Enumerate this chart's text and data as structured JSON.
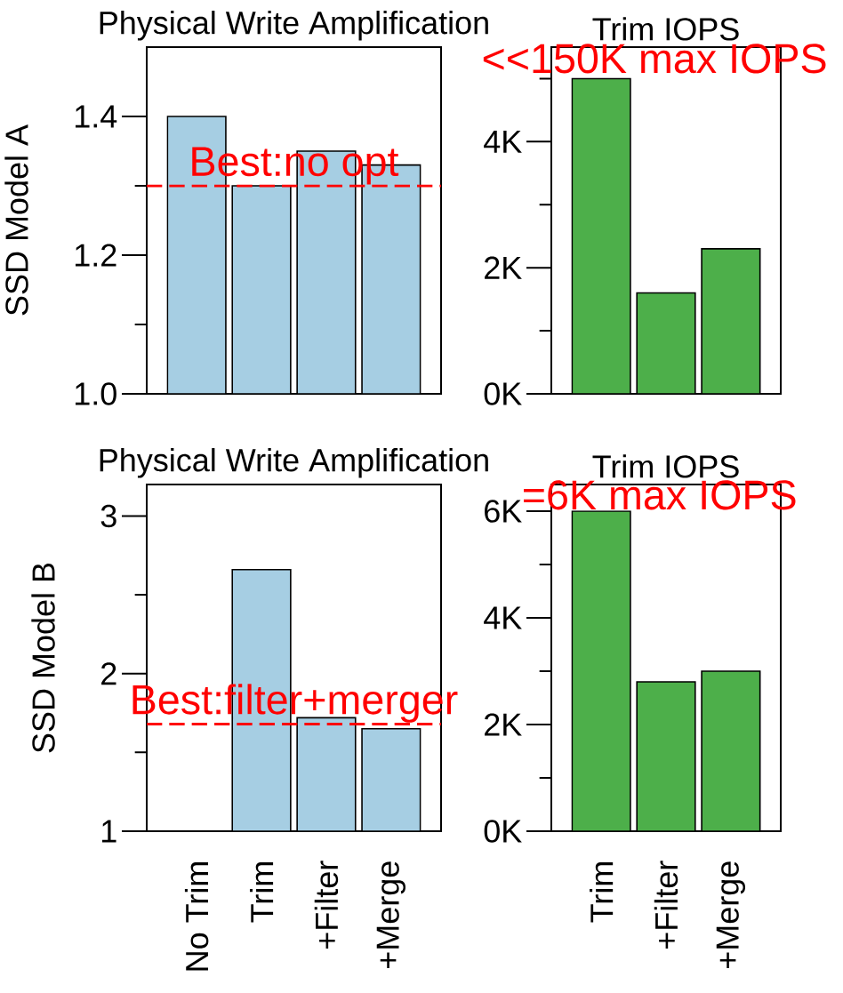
{
  "chart_data": [
    {
      "type": "bar",
      "title": "Physical Write Amplification",
      "ylabel": "SSD Model A",
      "values": [
        1.4,
        1.3,
        1.35,
        1.33
      ],
      "color": "#a6cee3",
      "ylim": [
        1.0,
        1.5
      ],
      "yticks": [
        {
          "value": 1.0,
          "label": "1.0"
        },
        {
          "value": 1.1,
          "label": null
        },
        1.2,
        {
          "value": 1.3,
          "label": null
        },
        1.4
      ],
      "ref_lines": [
        {
          "axis": "y",
          "value": 1.3,
          "label": "Best:no opt",
          "color": "#ff0000",
          "line_style": "dashed"
        }
      ],
      "tick_labels": "y"
    },
    {
      "type": "bar",
      "title": "Trim IOPS",
      "values": [
        5000,
        1600,
        2300
      ],
      "color": "#4daf4a",
      "ylim": [
        0,
        5500
      ],
      "yticks": [
        {
          "value": 0,
          "label": "0K"
        },
        {
          "value": 1000,
          "label": null
        },
        {
          "value": 2000,
          "label": "2K"
        },
        {
          "value": 3000,
          "label": null
        },
        {
          "value": 4000,
          "label": "4K"
        },
        {
          "value": 5000,
          "label": null
        }
      ],
      "annotations": [
        "<<150K max IOPS"
      ],
      "tick_labels": "y"
    },
    {
      "type": "bar",
      "title": "Physical Write Amplification",
      "ylabel": "SSD Model B",
      "categories": [
        "No Trim",
        "Trim",
        "+Filter",
        "+Merge"
      ],
      "values": [
        null,
        2.66,
        1.72,
        1.65
      ],
      "color": "#a6cee3",
      "ylim": [
        1,
        3.2
      ],
      "yticks": [
        1,
        {
          "value": 1.5,
          "label": null
        },
        2,
        {
          "value": 2.5,
          "label": null
        },
        3
      ],
      "ref_lines": [
        {
          "axis": "y",
          "value": 1.68,
          "label": "Best:filter+merger",
          "color": "#ff0000",
          "line_style": "dashed"
        }
      ]
    },
    {
      "type": "bar",
      "title": "Trim IOPS",
      "categories": [
        "Trim",
        "+Filter",
        "+Merge"
      ],
      "values": [
        6000,
        2800,
        3000
      ],
      "color": "#4daf4a",
      "ylim": [
        0,
        6500
      ],
      "yticks": [
        {
          "value": 0,
          "label": "0K"
        },
        {
          "value": 1000,
          "label": null
        },
        {
          "value": 2000,
          "label": "2K"
        },
        {
          "value": 3000,
          "label": null
        },
        {
          "value": 4000,
          "label": "4K"
        },
        {
          "value": 5000,
          "label": null
        },
        {
          "value": 6000,
          "label": "6K"
        }
      ],
      "annotations": [
        {
          "text": "=6K max IOPS",
          "x": "Trim",
          "y": 6000
        }
      ]
    }
  ]
}
